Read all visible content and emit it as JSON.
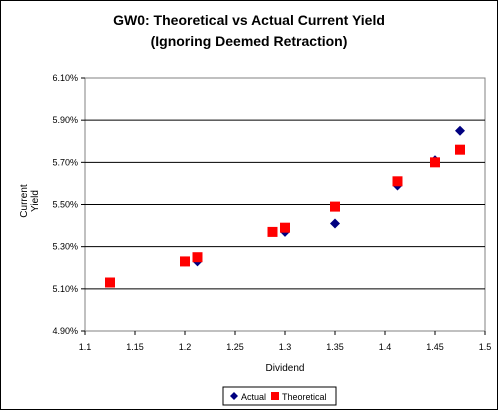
{
  "chart_data": {
    "type": "scatter",
    "title": "GW0: Theoretical vs Actual Current Yield",
    "subtitle": "(Ignoring Deemed Retraction)",
    "xlabel": "Dividend",
    "ylabel": [
      "Current",
      "Yield"
    ],
    "xlim": [
      1.1,
      1.5
    ],
    "ylim": [
      0.049,
      0.061
    ],
    "x_ticks": [
      "1.1",
      "1.15",
      "1.2",
      "1.25",
      "1.3",
      "1.35",
      "1.4",
      "1.45",
      "1.5"
    ],
    "y_ticks": [
      "6.10%",
      "5.90%",
      "5.70%",
      "5.50%",
      "5.30%",
      "5.10%",
      "4.90%"
    ],
    "grid": "horizontal major gridlines",
    "legend_position": "bottom",
    "series": [
      {
        "name": "Actual",
        "marker": "diamond",
        "color": "#000080",
        "points": [
          {
            "x": 1.125,
            "y": 0.0513
          },
          {
            "x": 1.2,
            "y": 0.0523
          },
          {
            "x": 1.2125,
            "y": 0.0523
          },
          {
            "x": 1.3,
            "y": 0.0537
          },
          {
            "x": 1.35,
            "y": 0.0541
          },
          {
            "x": 1.4125,
            "y": 0.0559
          },
          {
            "x": 1.45,
            "y": 0.0571
          },
          {
            "x": 1.475,
            "y": 0.0585
          }
        ]
      },
      {
        "name": "Theoretical",
        "marker": "square",
        "color": "#ff0000",
        "points": [
          {
            "x": 1.125,
            "y": 0.0513
          },
          {
            "x": 1.2,
            "y": 0.0523
          },
          {
            "x": 1.2125,
            "y": 0.0525
          },
          {
            "x": 1.2875,
            "y": 0.0537
          },
          {
            "x": 1.3,
            "y": 0.0539
          },
          {
            "x": 1.35,
            "y": 0.0549
          },
          {
            "x": 1.4125,
            "y": 0.0561
          },
          {
            "x": 1.45,
            "y": 0.057
          },
          {
            "x": 1.475,
            "y": 0.0576
          }
        ]
      }
    ]
  }
}
